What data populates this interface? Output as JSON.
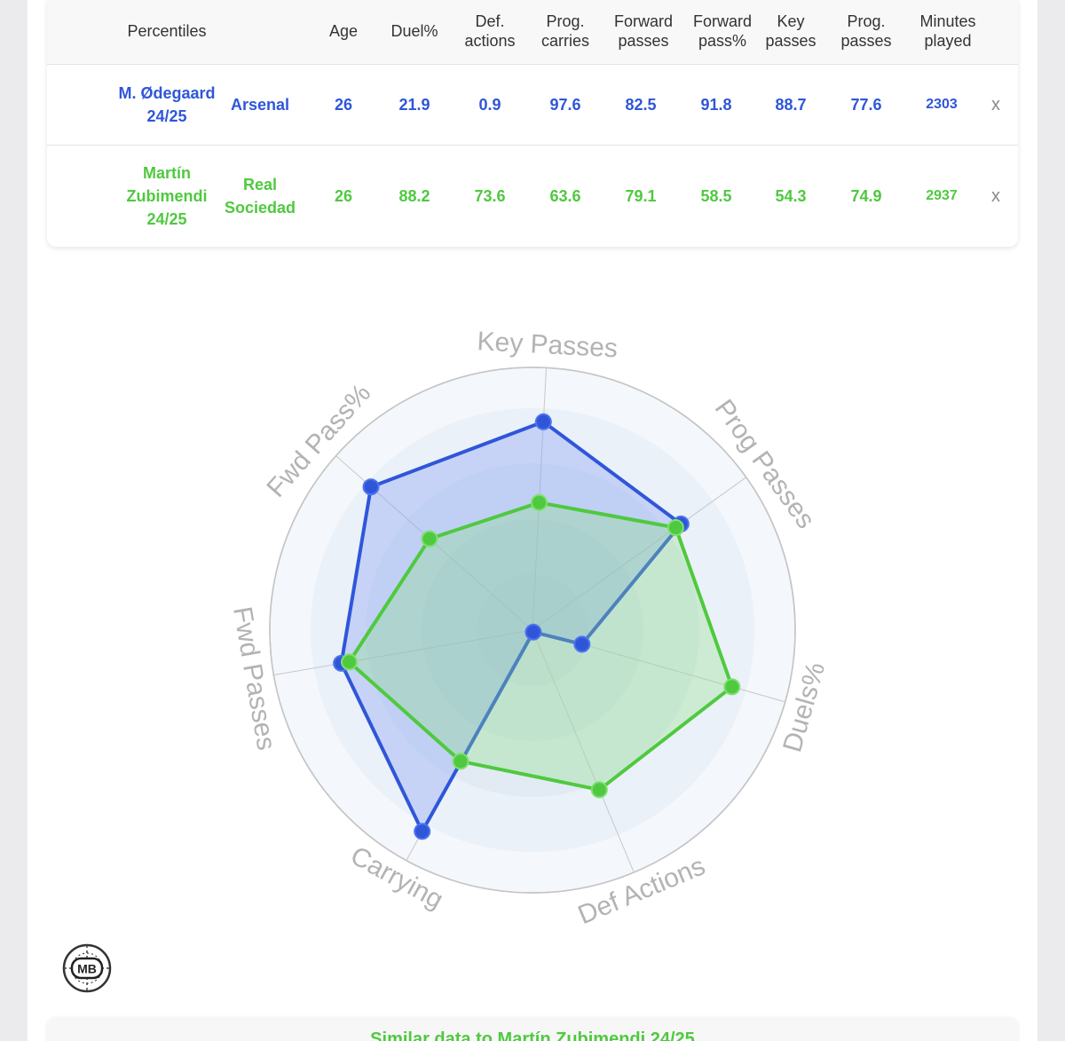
{
  "table": {
    "headers": {
      "percentiles": "Percentiles",
      "age": "Age",
      "duel_pct": "Duel%",
      "def_actions": "Def.\nactions",
      "prog_carries": "Prog.\ncarries",
      "forward_passes": "Forward\npasses",
      "forward_pass_pct": "Forward\npass%",
      "key_passes": "Key\npasses",
      "prog_passes": "Prog.\npasses",
      "minutes_played": "Minutes\nplayed"
    },
    "rows": [
      {
        "player": "M. Ødegaard\n24/25",
        "team": "Arsenal",
        "age": "26",
        "duel_pct": "21.9",
        "def_actions": "0.9",
        "prog_carries": "97.6",
        "forward_passes": "82.5",
        "forward_pass_pct": "91.8",
        "key_passes": "88.7",
        "prog_passes": "77.6",
        "minutes_played": "2303",
        "remove_label": "x",
        "color": "#2f56d9"
      },
      {
        "player": "Martín\nZubimendi\n24/25",
        "team": "Real\nSociedad",
        "age": "26",
        "duel_pct": "88.2",
        "def_actions": "73.6",
        "prog_carries": "63.6",
        "forward_passes": "79.1",
        "forward_pass_pct": "58.5",
        "key_passes": "54.3",
        "prog_passes": "74.9",
        "minutes_played": "2937",
        "remove_label": "x",
        "color": "#4fc93f"
      }
    ]
  },
  "chart_data": {
    "type": "radar",
    "axes": [
      "Key Passes",
      "Prog Passes",
      "Duels%",
      "Def Actions",
      "Carrying",
      "Fwd Passes",
      "Fwd Pass%"
    ],
    "range": [
      0,
      100
    ],
    "series": [
      {
        "name": "M. Ødegaard 24/25",
        "color": "#2f56d9",
        "values": [
          88.7,
          77.6,
          21.9,
          0.9,
          97.6,
          82.5,
          91.8
        ]
      },
      {
        "name": "Martín Zubimendi 24/25",
        "color": "#4fc93f",
        "values": [
          54.3,
          74.9,
          88.2,
          73.6,
          63.6,
          79.1,
          58.5
        ]
      }
    ]
  },
  "logo": {
    "text": "MB"
  },
  "similar": {
    "title": "Similar data to Martín Zubimendi 24/25"
  }
}
